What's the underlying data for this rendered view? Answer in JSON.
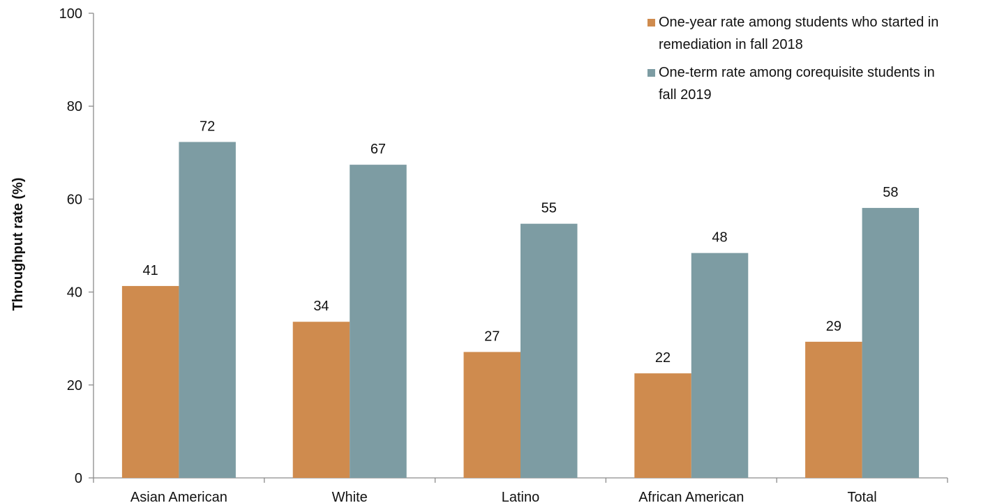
{
  "chart_data": {
    "type": "bar",
    "title": "",
    "xlabel": "",
    "ylabel": "Throughput rate (%)",
    "ylim": [
      0,
      100
    ],
    "yticks": [
      0,
      20,
      40,
      60,
      80,
      100
    ],
    "grid": false,
    "legend_position": "top-right",
    "categories": [
      "Asian American",
      "White",
      "Latino",
      "African American",
      "Total"
    ],
    "series": [
      {
        "name": "One-year rate among students who started in remediation in fall 2018",
        "legend_lines": [
          "One-year rate among students who started in",
          "remediation in fall 2018"
        ],
        "color": "#cf8b4e",
        "values": [
          41,
          34,
          27,
          22,
          29
        ],
        "plotted_values": [
          41.3,
          33.6,
          27.1,
          22.5,
          29.3
        ]
      },
      {
        "name": "One-term rate among corequisite students in fall 2019",
        "legend_lines": [
          "One-term rate among corequisite students in",
          "fall 2019"
        ],
        "color": "#7d9ca3",
        "values": [
          72,
          67,
          55,
          48,
          58
        ],
        "plotted_values": [
          72.3,
          67.4,
          54.7,
          48.4,
          58.1
        ]
      }
    ]
  }
}
